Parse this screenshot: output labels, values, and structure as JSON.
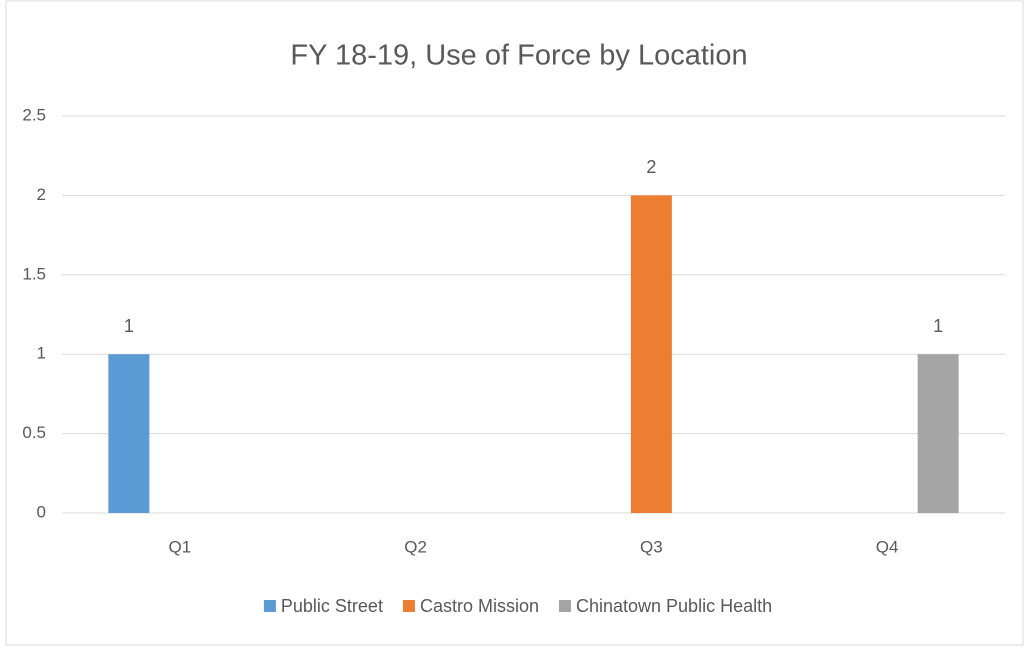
{
  "chart_data": {
    "type": "bar",
    "title": "FY 18-19, Use of Force by Location",
    "categories": [
      "Q1",
      "Q2",
      "Q3",
      "Q4"
    ],
    "series": [
      {
        "name": "Public Street",
        "color": "#5b9bd5",
        "values": [
          1,
          null,
          null,
          null
        ]
      },
      {
        "name": "Castro Mission",
        "color": "#ed7d31",
        "values": [
          null,
          null,
          2,
          null
        ]
      },
      {
        "name": "Chinatown Public Health",
        "color": "#a5a5a5",
        "values": [
          null,
          null,
          null,
          1
        ]
      }
    ],
    "ylim": [
      0,
      2.5
    ],
    "yticks": [
      0,
      0.5,
      1,
      1.5,
      2,
      2.5
    ],
    "grid": true,
    "legend": "bottom"
  }
}
